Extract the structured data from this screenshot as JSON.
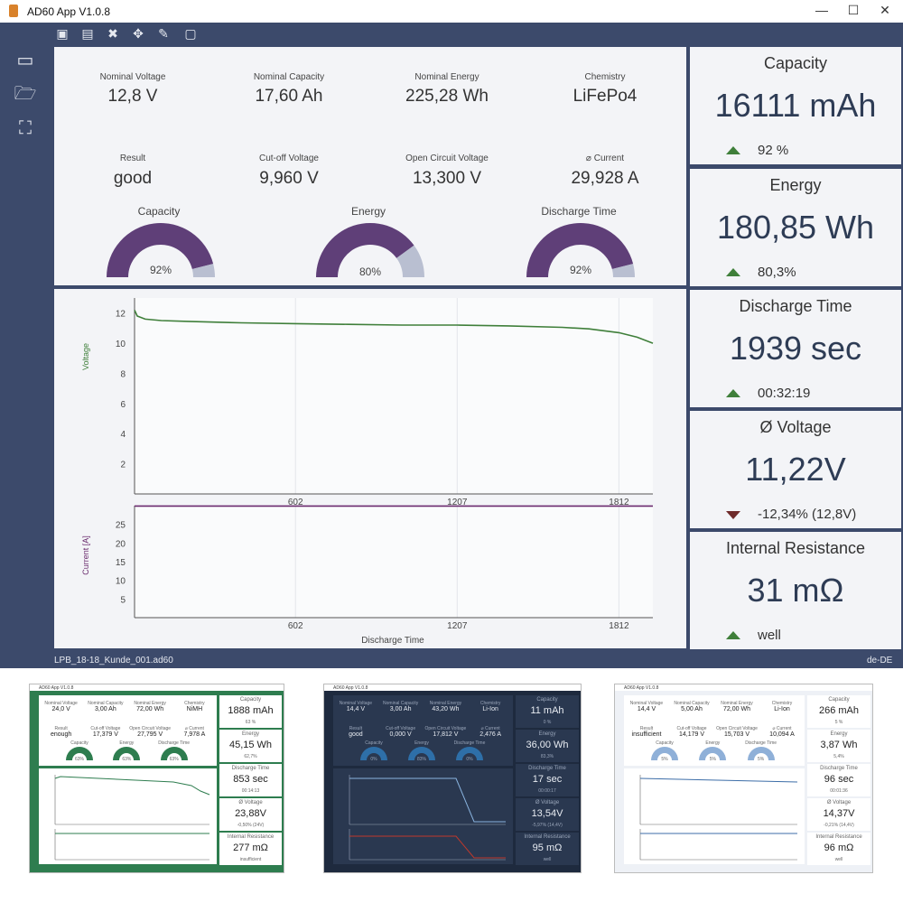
{
  "window": {
    "title": "AD60 App V1.0.8",
    "min": "—",
    "max": "☐",
    "close": "✕"
  },
  "toolbar": [
    "save-icon",
    "print-icon",
    "tools-icon",
    "move-icon",
    "pen-icon",
    "frame-icon"
  ],
  "sidebar": [
    "new-icon",
    "folder-open-icon",
    "crop-icon"
  ],
  "info": {
    "nominal_voltage": {
      "label": "Nominal Voltage",
      "value": "12,8 V"
    },
    "nominal_capacity": {
      "label": "Nominal Capacity",
      "value": "17,60 Ah"
    },
    "nominal_energy": {
      "label": "Nominal Energy",
      "value": "225,28 Wh"
    },
    "chemistry": {
      "label": "Chemistry",
      "value": "LiFePo4"
    },
    "result": {
      "label": "Result",
      "value": "good"
    },
    "cutoff_voltage": {
      "label": "Cut-off Voltage",
      "value": "9,960 V"
    },
    "open_circuit_voltage": {
      "label": "Open Circuit Voltage",
      "value": "13,300 V"
    },
    "current": {
      "label": "⌀ Current",
      "value": "29,928 A"
    }
  },
  "gauges": [
    {
      "label": "Capacity",
      "text": "92%",
      "fraction": 0.92
    },
    {
      "label": "Energy",
      "text": "80%",
      "fraction": 0.8
    },
    {
      "label": "Discharge Time",
      "text": "92%",
      "fraction": 0.92
    }
  ],
  "stats": {
    "capacity": {
      "title": "Capacity",
      "value": "16111 mAh",
      "sub": "92 %",
      "trend": "up"
    },
    "energy": {
      "title": "Energy",
      "value": "180,85 Wh",
      "sub": "80,3%",
      "trend": "up"
    },
    "discharge_time": {
      "title": "Discharge Time",
      "value": "1939 sec",
      "sub": "00:32:19",
      "trend": "up"
    },
    "voltage": {
      "title": "Ø Voltage",
      "value": "11,22V",
      "sub": "-12,34%  (12,8V)",
      "trend": "down"
    },
    "resistance": {
      "title": "Internal Resistance",
      "value": "31 mΩ",
      "sub": "well",
      "trend": "up"
    }
  },
  "status": {
    "file": "LPB_18-18_Kunde_001.ad60",
    "locale": "de-DE"
  },
  "colors": {
    "accent": "#3c4a6b",
    "gauge_fill": "#5f3f78",
    "gauge_rest": "#b9bfd1",
    "voltage_line": "#3f7f3a",
    "current_line": "#6a2b6e",
    "up": "#3f7f3a",
    "down": "#6e2a2a"
  },
  "chart_data": [
    {
      "type": "line",
      "ylabel": "Voltage",
      "xlabel": "",
      "xlim": [
        0,
        1939
      ],
      "ylim": [
        0,
        13
      ],
      "yticks": [
        2,
        4,
        6,
        8,
        10,
        12
      ],
      "xticks": [
        602,
        1207,
        1812
      ],
      "grid": true,
      "series": [
        {
          "x": [
            0,
            10,
            40,
            100,
            200,
            400,
            602,
            800,
            1000,
            1207,
            1400,
            1600,
            1700,
            1812,
            1880,
            1939
          ],
          "y": [
            12.2,
            11.8,
            11.6,
            11.5,
            11.45,
            11.35,
            11.3,
            11.25,
            11.2,
            11.2,
            11.15,
            11.05,
            10.95,
            10.7,
            10.4,
            10.0
          ]
        }
      ]
    },
    {
      "type": "line",
      "ylabel": "Current [A]",
      "xlabel": "Discharge Time",
      "xlim": [
        0,
        1939
      ],
      "ylim": [
        0,
        30
      ],
      "yticks": [
        5,
        10,
        15,
        20,
        25
      ],
      "xticks": [
        602,
        1207,
        1812
      ],
      "grid": true,
      "series": [
        {
          "x": [
            0,
            1939
          ],
          "y": [
            29.9,
            29.9
          ]
        }
      ]
    }
  ],
  "thumbnails": [
    {
      "theme": "green",
      "title": "AD60 App V1.0.8",
      "info": [
        [
          "Nominal Voltage",
          "24,0 V"
        ],
        [
          "Nominal Capacity",
          "3,00 Ah"
        ],
        [
          "Nominal Energy",
          "72,00 Wh"
        ],
        [
          "Chemistry",
          "NiMH"
        ],
        [
          "Result",
          "enough"
        ],
        [
          "Cut-off Voltage",
          "17,379 V"
        ],
        [
          "Open Circuit Voltage",
          "27,795 V"
        ],
        [
          "⌀ Current",
          "7,978 A"
        ]
      ],
      "gauges": [
        [
          "Capacity",
          "63%"
        ],
        [
          "Energy",
          "63%"
        ],
        [
          "Discharge Time",
          "63%"
        ]
      ],
      "stats": [
        [
          "Capacity",
          "1888 mAh",
          "63 %"
        ],
        [
          "Energy",
          "45,15 Wh",
          "62,7%"
        ],
        [
          "Discharge Time",
          "853 sec",
          "00:14:13"
        ],
        [
          "Ø Voltage",
          "23,88V",
          "-0,50%  (24V)"
        ],
        [
          "Internal Resistance",
          "277 mΩ",
          "insufficient"
        ]
      ]
    },
    {
      "theme": "dark",
      "title": "AD60 App V1.0.8",
      "info": [
        [
          "Nominal Voltage",
          "14,4 V"
        ],
        [
          "Nominal Capacity",
          "3,00 Ah"
        ],
        [
          "Nominal Energy",
          "43,20 Wh"
        ],
        [
          "Chemistry",
          "Li-Ion"
        ],
        [
          "Result",
          "good"
        ],
        [
          "Cut-off Voltage",
          "0,000 V"
        ],
        [
          "Open Circuit Voltage",
          "17,812 V"
        ],
        [
          "⌀ Current",
          "2,476 A"
        ]
      ],
      "gauges": [
        [
          "Capacity",
          "0%"
        ],
        [
          "Energy",
          "83%"
        ],
        [
          "Discharge Time",
          "0%"
        ]
      ],
      "stats": [
        [
          "Capacity",
          "11 mAh",
          "0 %"
        ],
        [
          "Energy",
          "36,00 Wh",
          "83,3%"
        ],
        [
          "Discharge Time",
          "17 sec",
          "00:00:17"
        ],
        [
          "Ø Voltage",
          "13,54V",
          "-5,97%  (14,4V)"
        ],
        [
          "Internal Resistance",
          "95 mΩ",
          "well"
        ]
      ]
    },
    {
      "theme": "light",
      "title": "AD60 App V1.0.8",
      "info": [
        [
          "Nominal Voltage",
          "14,4 V"
        ],
        [
          "Nominal Capacity",
          "5,00 Ah"
        ],
        [
          "Nominal Energy",
          "72,00 Wh"
        ],
        [
          "Chemistry",
          "Li-Ion"
        ],
        [
          "Result",
          "insufficient"
        ],
        [
          "Cut-off Voltage",
          "14,179 V"
        ],
        [
          "Open Circuit Voltage",
          "15,703 V"
        ],
        [
          "⌀ Current",
          "10,094 A"
        ]
      ],
      "gauges": [
        [
          "Capacity",
          "5%"
        ],
        [
          "Energy",
          "5%"
        ],
        [
          "Discharge Time",
          "5%"
        ]
      ],
      "stats": [
        [
          "Capacity",
          "266 mAh",
          "5 %"
        ],
        [
          "Energy",
          "3,87 Wh",
          "5,4%"
        ],
        [
          "Discharge Time",
          "96 sec",
          "00:01:36"
        ],
        [
          "Ø Voltage",
          "14,37V",
          "-0,21%  (14,4V)"
        ],
        [
          "Internal Resistance",
          "96 mΩ",
          "well"
        ]
      ]
    }
  ]
}
